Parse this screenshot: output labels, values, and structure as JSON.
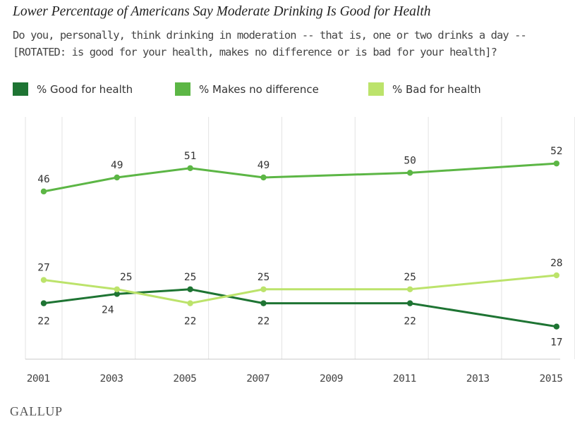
{
  "header": {
    "title": "Lower Percentage of Americans Say Moderate Drinking Is Good for Health",
    "subtitle_line1": "Do you, personally, think drinking in moderation -- that is, one or two drinks a day --",
    "subtitle_line2": "[ROTATED: is good for your health, makes no difference or is bad for your health]?"
  },
  "legend": [
    {
      "label": "% Good for health",
      "color": "#1e7433"
    },
    {
      "label": "% Makes no difference",
      "color": "#5cb645"
    },
    {
      "label": "% Bad for health",
      "color": "#bce36b"
    }
  ],
  "footer": {
    "brand": "GALLUP"
  },
  "chart_data": {
    "type": "line",
    "title": "Lower Percentage of Americans Say Moderate Drinking Is Good for Health",
    "xlabel": "",
    "ylabel": "",
    "xlim": [
      2001,
      2015.6
    ],
    "ylim": [
      10,
      62
    ],
    "x_ticks": [
      "2001",
      "2003",
      "2005",
      "2007",
      "2009",
      "2011",
      "2013",
      "2015"
    ],
    "x": [
      2001.5,
      2003.5,
      2005.5,
      2007.5,
      2011.5,
      2015.5
    ],
    "series": [
      {
        "name": "% Good for health",
        "color": "#1e7433",
        "values": [
          22,
          24,
          25,
          22,
          22,
          17
        ]
      },
      {
        "name": "% Makes no difference",
        "color": "#5cb645",
        "values": [
          46,
          49,
          51,
          49,
          50,
          52
        ]
      },
      {
        "name": "% Bad for health",
        "color": "#bce36b",
        "values": [
          27,
          25,
          22,
          25,
          25,
          28
        ]
      }
    ],
    "grid": true
  }
}
